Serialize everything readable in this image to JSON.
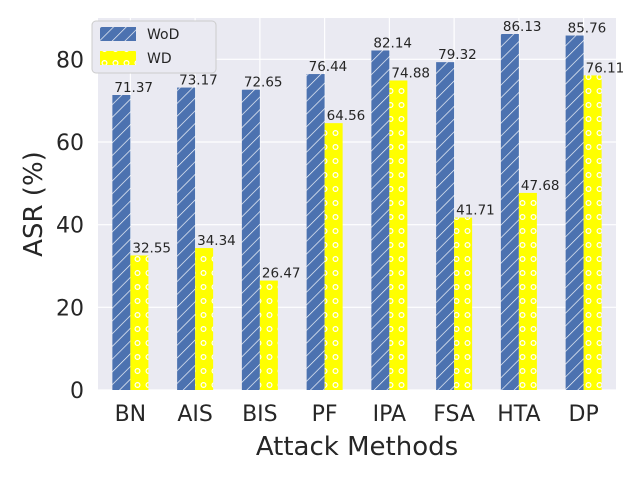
{
  "chart_data": {
    "type": "bar",
    "categories": [
      "BN",
      "AIS",
      "BIS",
      "PF",
      "IPA",
      "FSA",
      "HTA",
      "DP"
    ],
    "series": [
      {
        "name": "WoD",
        "values": [
          71.37,
          73.17,
          72.65,
          76.44,
          82.14,
          79.32,
          86.13,
          85.76
        ],
        "color": "#4c72b0",
        "hatch": "diagonal"
      },
      {
        "name": "WD",
        "values": [
          32.55,
          34.34,
          26.47,
          64.56,
          74.88,
          41.71,
          47.68,
          76.11
        ],
        "color": "#ffff00",
        "hatch": "circles"
      }
    ],
    "data_labels": {
      "WoD": [
        "71.37",
        "73.17",
        "72.65",
        "76.44",
        "82.14",
        "79.32",
        "86.13",
        "85.76"
      ],
      "WD": [
        "32.55",
        "34.34",
        "26.47",
        "64.56",
        "74.88",
        "41.71",
        "47.68",
        "76.11"
      ]
    },
    "xlabel": "Attack Methods",
    "ylabel": "ASR (%)",
    "ylim": [
      0,
      90
    ],
    "yticks": [
      0,
      20,
      40,
      60,
      80
    ],
    "grid": true,
    "legend": "top-left",
    "background": "#eaeaf2"
  }
}
